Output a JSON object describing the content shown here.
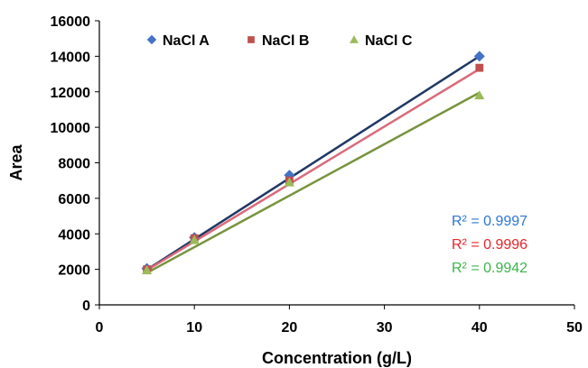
{
  "chart_data": {
    "type": "scatter",
    "x": [
      5,
      10,
      20,
      40
    ],
    "series": [
      {
        "name": "NaCl A",
        "values": [
          2050,
          3800,
          7300,
          14000
        ],
        "color": "#4472C4",
        "marker": "diamond",
        "trendline_color": "#1F3864",
        "r2_label": "R² = 0.9997",
        "r2_color": "#2E75D6"
      },
      {
        "name": "NaCl B",
        "values": [
          2000,
          3750,
          7000,
          13350
        ],
        "color": "#C0504D",
        "marker": "square",
        "trendline_color": "#D96B7B",
        "r2_label": "R² = 0.9996",
        "r2_color": "#E8232A"
      },
      {
        "name": "NaCl C",
        "values": [
          1950,
          3650,
          6900,
          11800
        ],
        "color": "#9BBB59",
        "marker": "triangle",
        "trendline_color": "#77933C",
        "r2_label": "R² = 0.9942",
        "r2_color": "#3BB54A"
      }
    ],
    "trendlines": [
      {
        "series": "NaCl A",
        "points": [
          [
            5,
            1980
          ],
          [
            40,
            14000
          ]
        ]
      },
      {
        "series": "NaCl B",
        "points": [
          [
            5,
            1950
          ],
          [
            40,
            13280
          ]
        ]
      },
      {
        "series": "NaCl C",
        "points": [
          [
            5,
            1800
          ],
          [
            40,
            11950
          ]
        ]
      }
    ],
    "xlabel": "Concentration (g/L)",
    "ylabel": "Area",
    "xlim": [
      0,
      50
    ],
    "ylim": [
      0,
      16000
    ],
    "xticks": [
      0,
      10,
      20,
      30,
      40,
      50
    ],
    "yticks": [
      0,
      2000,
      4000,
      6000,
      8000,
      10000,
      12000,
      14000,
      16000
    ],
    "grid": false,
    "legend_position": "top"
  }
}
